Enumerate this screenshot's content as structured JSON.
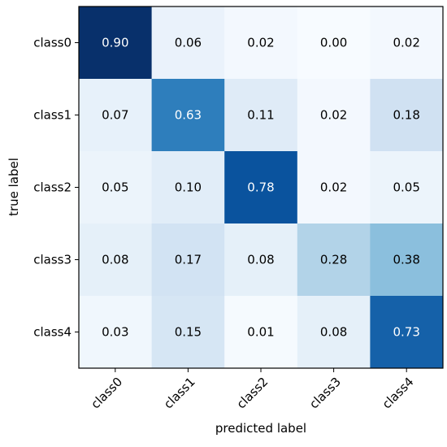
{
  "chart_data": {
    "type": "heatmap",
    "title": "",
    "xlabel": "predicted label",
    "ylabel": "true label",
    "x_categories": [
      "class0",
      "class1",
      "class2",
      "class3",
      "class4"
    ],
    "y_categories": [
      "class0",
      "class1",
      "class2",
      "class3",
      "class4"
    ],
    "values": [
      [
        0.9,
        0.06,
        0.02,
        0.0,
        0.02
      ],
      [
        0.07,
        0.63,
        0.11,
        0.02,
        0.18
      ],
      [
        0.05,
        0.1,
        0.78,
        0.02,
        0.05
      ],
      [
        0.08,
        0.17,
        0.08,
        0.28,
        0.38
      ],
      [
        0.03,
        0.15,
        0.01,
        0.08,
        0.73
      ]
    ],
    "value_range": [
      0,
      0.9
    ],
    "colormap": "Blues",
    "grid": false,
    "legend": "none"
  }
}
